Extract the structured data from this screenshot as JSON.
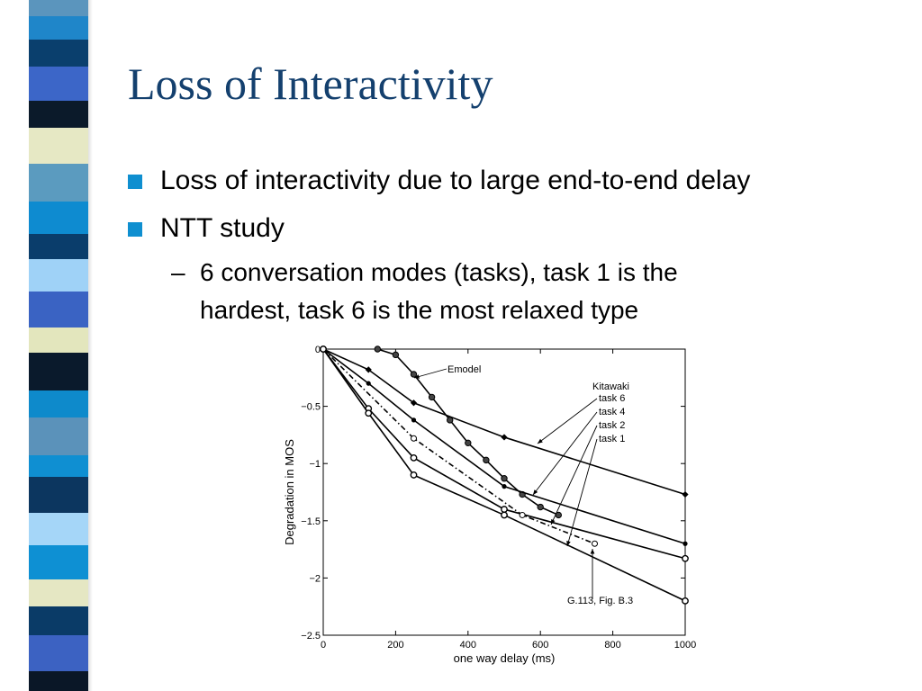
{
  "slide": {
    "title": "Loss of Interactivity",
    "bullets": [
      {
        "text": "Loss of interactivity due to large end-to-end delay"
      },
      {
        "text": "NTT study"
      }
    ],
    "sub_bullet": {
      "dash": "–",
      "lines": [
        "6 conversation modes (tasks), task 1 is the",
        "hardest, task 6 is the most relaxed type"
      ]
    },
    "colors": {
      "title": "#14406e",
      "bullet_square": "#0f8fd0",
      "stripe": [
        "#5b95bd",
        "#1f86c9",
        "#0a3f6d",
        "#3c66c8",
        "#0b1a2a",
        "#e6e8c4",
        "#5b9bbf",
        "#0e8bd0",
        "#0a3d6b",
        "#9fd2f7",
        "#3a63c3",
        "#e3e6bd",
        "#0a1a2c",
        "#0e8acb",
        "#5b92ba",
        "#0f8fd2",
        "#0c365f",
        "#a5d6f8",
        "#0e90d3",
        "#e5e7c3",
        "#0a3b67",
        "#3c62c2",
        "#0a1727"
      ]
    }
  },
  "chart_data": {
    "type": "line",
    "xlabel": "one way delay (ms)",
    "ylabel": "Degradation in MOS",
    "xlim": [
      0,
      1000
    ],
    "ylim": [
      -2.5,
      0
    ],
    "xticks": [
      "0",
      "200",
      "400",
      "600",
      "800",
      "1000"
    ],
    "yticks": [
      "0",
      "−0.5",
      "−1",
      "−1.5",
      "−2",
      "−2.5"
    ],
    "grid": false,
    "series": [
      {
        "name": "Emodel",
        "marker": "circle-filled",
        "dash": "solid",
        "x": [
          150,
          200,
          250,
          300,
          350,
          400,
          450,
          500,
          550,
          600,
          650
        ],
        "y": [
          0,
          -0.05,
          -0.22,
          -0.42,
          -0.62,
          -0.82,
          -0.97,
          -1.13,
          -1.27,
          -1.38,
          -1.45
        ]
      },
      {
        "name": "task 6",
        "marker": "diamond",
        "dash": "solid",
        "x": [
          0,
          125,
          250,
          500,
          1000
        ],
        "y": [
          0,
          -0.18,
          -0.47,
          -0.77,
          -1.27
        ]
      },
      {
        "name": "task 4",
        "marker": "dot",
        "dash": "solid",
        "x": [
          0,
          125,
          250,
          500,
          1000
        ],
        "y": [
          0,
          -0.3,
          -0.62,
          -1.2,
          -1.7
        ]
      },
      {
        "name": "task 2",
        "marker": "circle",
        "dash": "solid",
        "x": [
          0,
          125,
          250,
          500,
          1000
        ],
        "y": [
          0,
          -0.52,
          -0.95,
          -1.4,
          -1.83
        ]
      },
      {
        "name": "task 1",
        "marker": "circle",
        "dash": "solid",
        "x": [
          0,
          125,
          250,
          500,
          1000
        ],
        "y": [
          0,
          -0.56,
          -1.1,
          -1.45,
          -2.2
        ]
      },
      {
        "name": "G.113, Fig. B.3",
        "marker": "circle-open",
        "dash": "dashdot",
        "x": [
          0,
          250,
          550,
          750
        ],
        "y": [
          0,
          -0.78,
          -1.45,
          -1.7
        ]
      }
    ],
    "annotations": [
      {
        "text": "Emodel"
      },
      {
        "text": "Kitawaki"
      },
      {
        "text": "task 6"
      },
      {
        "text": "task 4"
      },
      {
        "text": "task 2"
      },
      {
        "text": "task 1"
      },
      {
        "text": "G.113, Fig. B.3"
      }
    ]
  }
}
